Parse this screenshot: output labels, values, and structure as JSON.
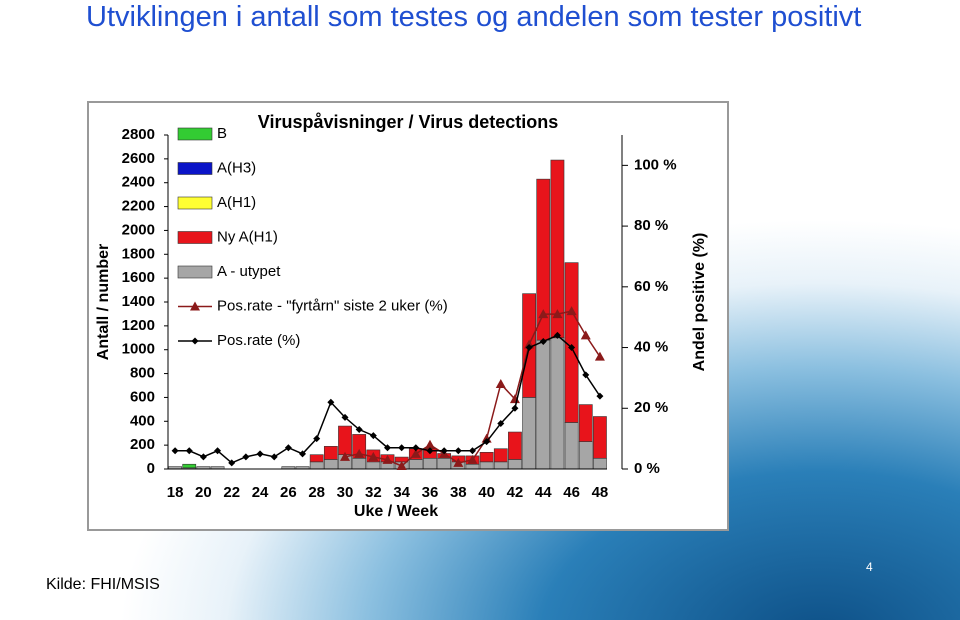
{
  "slide": {
    "title": "Utviklingen i antall som testes og andelen som tester positivt",
    "source": "Kilde: FHI/MSIS",
    "page_number": "4"
  },
  "chart_data": {
    "type": "bar",
    "stacked": true,
    "title": "Viruspåvisninger / Virus detections",
    "x_label": "Uke / Week",
    "y_label": "Antall / number",
    "y2_label": "Andel positive (%)",
    "categories": [
      "18",
      null,
      "20",
      null,
      "22",
      null,
      "24",
      null,
      "26",
      null,
      "28",
      null,
      "30",
      null,
      "32",
      null,
      "34",
      null,
      "36",
      null,
      "38",
      null,
      "40",
      null,
      "42",
      null,
      "44",
      null,
      "46",
      null,
      "48"
    ],
    "ylim": [
      0,
      2800
    ],
    "yticks": [
      0,
      200,
      400,
      600,
      800,
      1000,
      1200,
      1400,
      1600,
      1800,
      2000,
      2200,
      2400,
      2600,
      2800
    ],
    "y2lim": [
      0,
      110
    ],
    "y2ticks": [
      {
        "value": 0,
        "label": "0 %"
      },
      {
        "value": 20,
        "label": "20 %"
      },
      {
        "value": 40,
        "label": "40 %"
      },
      {
        "value": 60,
        "label": "60 %"
      },
      {
        "value": 80,
        "label": "80 %"
      },
      {
        "value": 100,
        "label": "100 %"
      }
    ],
    "series": [
      {
        "name": "B",
        "type": "bar",
        "color": "#33cc33",
        "values": [
          0,
          30,
          0,
          0,
          0,
          0,
          0,
          0,
          0,
          0,
          0,
          0,
          0,
          0,
          0,
          0,
          0,
          0,
          0,
          0,
          0,
          0,
          0,
          0,
          0,
          0,
          0,
          0,
          0,
          0,
          0
        ]
      },
      {
        "name": "A(H3)",
        "type": "bar",
        "color": "#0a14c8",
        "values": [
          0,
          0,
          0,
          0,
          0,
          0,
          0,
          0,
          0,
          0,
          0,
          0,
          0,
          0,
          0,
          0,
          0,
          0,
          0,
          0,
          0,
          0,
          0,
          0,
          0,
          0,
          0,
          0,
          0,
          0,
          0
        ]
      },
      {
        "name": "A(H1)",
        "type": "bar",
        "color": "#ffff33",
        "values": [
          0,
          0,
          0,
          0,
          0,
          0,
          0,
          0,
          0,
          0,
          0,
          0,
          0,
          0,
          0,
          0,
          0,
          0,
          0,
          0,
          0,
          0,
          0,
          0,
          0,
          0,
          0,
          0,
          0,
          0,
          0
        ]
      },
      {
        "name": "Ny A(H1)",
        "type": "bar",
        "color": "#e8141b",
        "values": [
          0,
          0,
          0,
          0,
          0,
          0,
          0,
          0,
          0,
          0,
          60,
          110,
          240,
          200,
          100,
          60,
          40,
          90,
          80,
          40,
          50,
          70,
          80,
          110,
          230,
          870,
          1350,
          1490,
          1340,
          310,
          350
        ]
      },
      {
        "name": "A - utypet",
        "type": "bar",
        "color": "#a6a6a6",
        "values": [
          20,
          10,
          20,
          20,
          0,
          0,
          0,
          0,
          20,
          20,
          60,
          80,
          120,
          90,
          60,
          60,
          60,
          80,
          90,
          90,
          60,
          40,
          60,
          60,
          80,
          600,
          1080,
          1100,
          390,
          230,
          90
        ]
      },
      {
        "name": "Pos.rate - \"fyrtårn\" siste 2 uker (%)",
        "type": "line",
        "axis": "y2",
        "marker": "triangle",
        "color": "#8b1a1a",
        "values": [
          null,
          null,
          null,
          null,
          null,
          null,
          null,
          null,
          null,
          null,
          null,
          null,
          4,
          5,
          4,
          3,
          1,
          5,
          8,
          5,
          2,
          3,
          10,
          28,
          23,
          41,
          51,
          51,
          52,
          44,
          37
        ]
      },
      {
        "name": "Pos.rate (%)",
        "type": "line",
        "axis": "y2",
        "marker": "diamond",
        "color": "#000000",
        "values": [
          6,
          6,
          4,
          6,
          2,
          4,
          5,
          4,
          7,
          5,
          10,
          22,
          17,
          13,
          11,
          7,
          7,
          7,
          6,
          6,
          6,
          6,
          9,
          15,
          20,
          40,
          42,
          44,
          40,
          31,
          24
        ]
      }
    ]
  }
}
